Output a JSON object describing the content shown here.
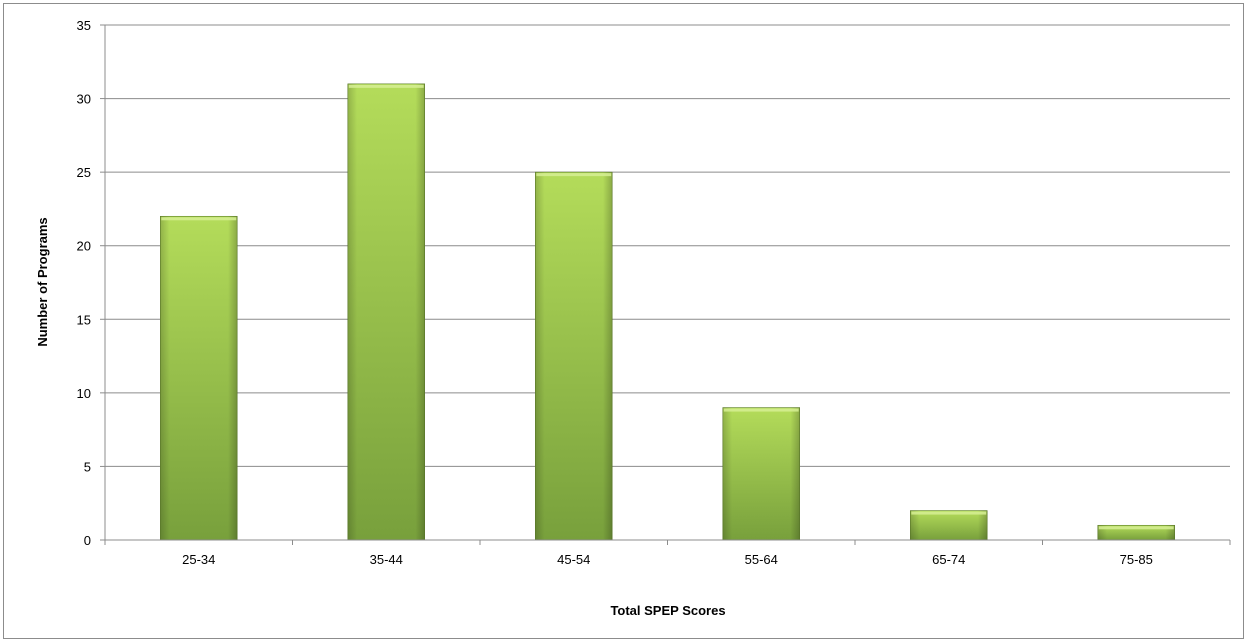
{
  "chart_data": {
    "type": "bar",
    "categories": [
      "25-34",
      "35-44",
      "45-54",
      "55-64",
      "65-74",
      "75-85"
    ],
    "values": [
      22,
      31,
      25,
      9,
      2,
      1
    ],
    "title": "",
    "xlabel": "Total SPEP Scores",
    "ylabel": "Number of Programs",
    "ylim": [
      0,
      35
    ],
    "yticks": [
      0,
      5,
      10,
      15,
      20,
      25,
      30,
      35
    ],
    "grid": true,
    "legend": "none",
    "colors": {
      "bar_light": "#b4dc5a",
      "bar_dark": "#78a03c",
      "bar_edge": "#5e7f2a",
      "grid": "#8c8c8c",
      "axis": "#8c8c8c"
    }
  }
}
